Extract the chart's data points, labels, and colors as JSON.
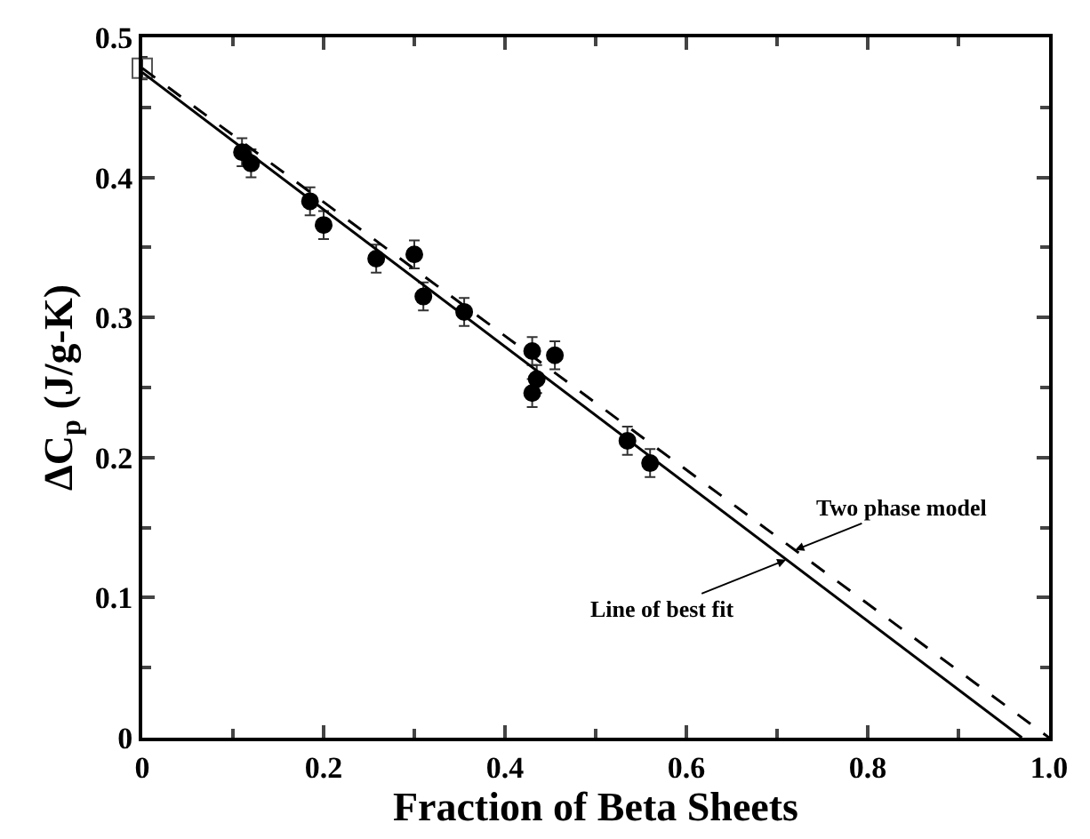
{
  "chart_data": {
    "type": "scatter",
    "xlabel": "Fraction of Beta Sheets",
    "ylabel": "ΔC$_{p}$ (J/g-K)",
    "xlim": [
      0,
      1.0
    ],
    "ylim": [
      0,
      0.5
    ],
    "xticks": [
      0,
      0.2,
      0.4,
      0.6,
      0.8,
      {
        "value": 1.0,
        "label": "1.0"
      }
    ],
    "yticks": [
      0,
      0.1,
      0.2,
      0.3,
      0.4,
      0.5
    ],
    "grid": false,
    "legend": false,
    "series": [
      {
        "marker": "circle",
        "color": "#000000",
        "x": [
          0.11,
          0.12,
          0.185,
          0.2,
          0.258,
          0.3,
          0.31,
          0.355,
          0.43,
          0.43,
          0.435,
          0.455,
          0.535,
          0.56
        ],
        "values": [
          0.418,
          0.41,
          0.383,
          0.366,
          0.342,
          0.345,
          0.315,
          0.304,
          0.276,
          0.246,
          0.256,
          0.273,
          0.212,
          0.196
        ],
        "errors": [
          0.01,
          0.01,
          0.01,
          0.01,
          0.01,
          0.01,
          0.01,
          0.01,
          0.01,
          0.01,
          0.01,
          0.01,
          0.01,
          0.01
        ]
      },
      {
        "marker": "square",
        "color": "#555555",
        "x": [
          0.0
        ],
        "values": [
          0.478
        ],
        "errors": [
          0.008
        ]
      },
      {
        "type": "line",
        "line_style": "solid",
        "color": "#000000",
        "x": [
          0,
          0.97
        ],
        "values": [
          0.475,
          0
        ]
      },
      {
        "type": "line",
        "line_style": "dashed",
        "color": "#000000",
        "x": [
          0,
          1.0
        ],
        "values": [
          0.478,
          0
        ]
      }
    ],
    "annotations": [
      {
        "text": "Two phase model",
        "x": 0.72,
        "y": 0.134
      },
      {
        "text": "Line of best fit",
        "x": 0.71,
        "y": 0.127
      }
    ]
  }
}
